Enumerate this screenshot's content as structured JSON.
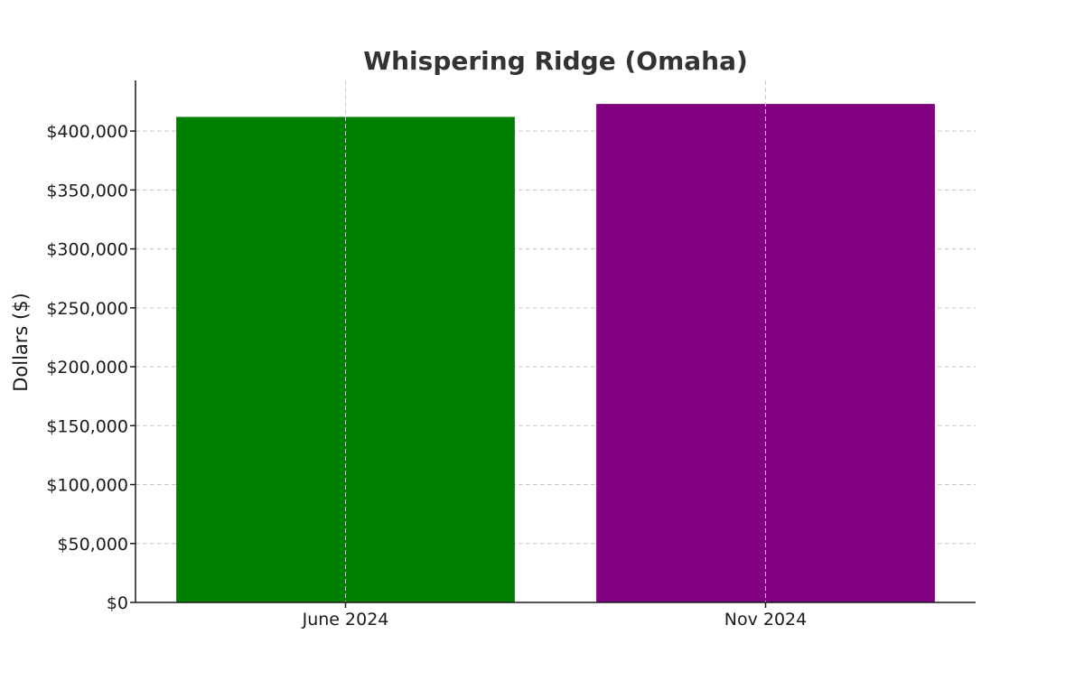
{
  "chart_data": {
    "type": "bar",
    "title": "Whispering Ridge (Omaha)",
    "xlabel": "",
    "ylabel": "Dollars ($)",
    "categories": [
      "June 2024",
      "Nov 2024"
    ],
    "values": [
      412000,
      423000
    ],
    "colors": [
      "#008000",
      "#800080"
    ],
    "ylim": [
      0,
      443000
    ],
    "yticks": [
      0,
      50000,
      100000,
      150000,
      200000,
      250000,
      300000,
      350000,
      400000
    ],
    "ytick_labels": [
      "$0",
      "$50,000",
      "$100,000",
      "$150,000",
      "$200,000",
      "$250,000",
      "$300,000",
      "$350,000",
      "$400,000"
    ],
    "grid": true,
    "legend": "none"
  }
}
